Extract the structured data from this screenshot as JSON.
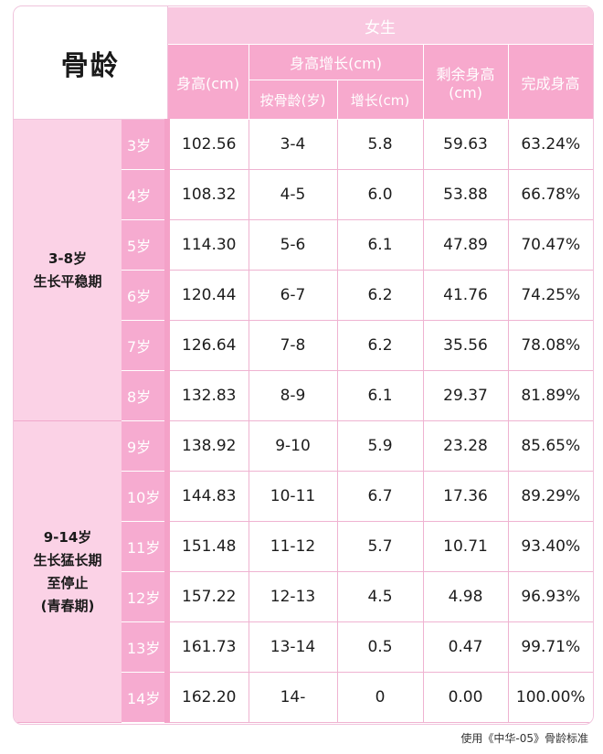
{
  "header": {
    "corner": "骨龄",
    "girls": "女生",
    "height": "身高(cm)",
    "growth_group": "身高增长(cm)",
    "by_bone_age": "按骨龄(岁)",
    "growth": "增长(cm)",
    "remaining": "剩余身高\n(cm)",
    "completed": "完成身高"
  },
  "phases": [
    {
      "label": "3-8岁\n生长平稳期",
      "rows": 6
    },
    {
      "label": "9-14岁\n生长猛长期\n至停止\n(青春期)",
      "rows": 6
    }
  ],
  "rows": [
    {
      "age": "3岁",
      "height": "102.56",
      "range": "3-4",
      "growth": "5.8",
      "remaining": "59.63",
      "completed": "63.24%"
    },
    {
      "age": "4岁",
      "height": "108.32",
      "range": "4-5",
      "growth": "6.0",
      "remaining": "53.88",
      "completed": "66.78%"
    },
    {
      "age": "5岁",
      "height": "114.30",
      "range": "5-6",
      "growth": "6.1",
      "remaining": "47.89",
      "completed": "70.47%"
    },
    {
      "age": "6岁",
      "height": "120.44",
      "range": "6-7",
      "growth": "6.2",
      "remaining": "41.76",
      "completed": "74.25%"
    },
    {
      "age": "7岁",
      "height": "126.64",
      "range": "7-8",
      "growth": "6.2",
      "remaining": "35.56",
      "completed": "78.08%"
    },
    {
      "age": "8岁",
      "height": "132.83",
      "range": "8-9",
      "growth": "6.1",
      "remaining": "29.37",
      "completed": "81.89%"
    },
    {
      "age": "9岁",
      "height": "138.92",
      "range": "9-10",
      "growth": "5.9",
      "remaining": "23.28",
      "completed": "85.65%"
    },
    {
      "age": "10岁",
      "height": "144.83",
      "range": "10-11",
      "growth": "6.7",
      "remaining": "17.36",
      "completed": "89.29%"
    },
    {
      "age": "11岁",
      "height": "151.48",
      "range": "11-12",
      "growth": "5.7",
      "remaining": "10.71",
      "completed": "93.40%"
    },
    {
      "age": "12岁",
      "height": "157.22",
      "range": "12-13",
      "growth": "4.5",
      "remaining": "4.98",
      "completed": "96.93%"
    },
    {
      "age": "13岁",
      "height": "161.73",
      "range": "13-14",
      "growth": "0.5",
      "remaining": "0.47",
      "completed": "99.71%"
    },
    {
      "age": "14岁",
      "height": "162.20",
      "range": "14-",
      "growth": "0",
      "remaining": "0.00",
      "completed": "100.00%"
    }
  ],
  "footnote": "使用《中华-05》骨龄标准",
  "colors": {
    "header_pink": "#f7a9cd",
    "girls_header": "#f9c8e0",
    "phase_bg": "#fbd2e6",
    "age_bg": "#f6abd0",
    "border": "#efb3d1"
  }
}
